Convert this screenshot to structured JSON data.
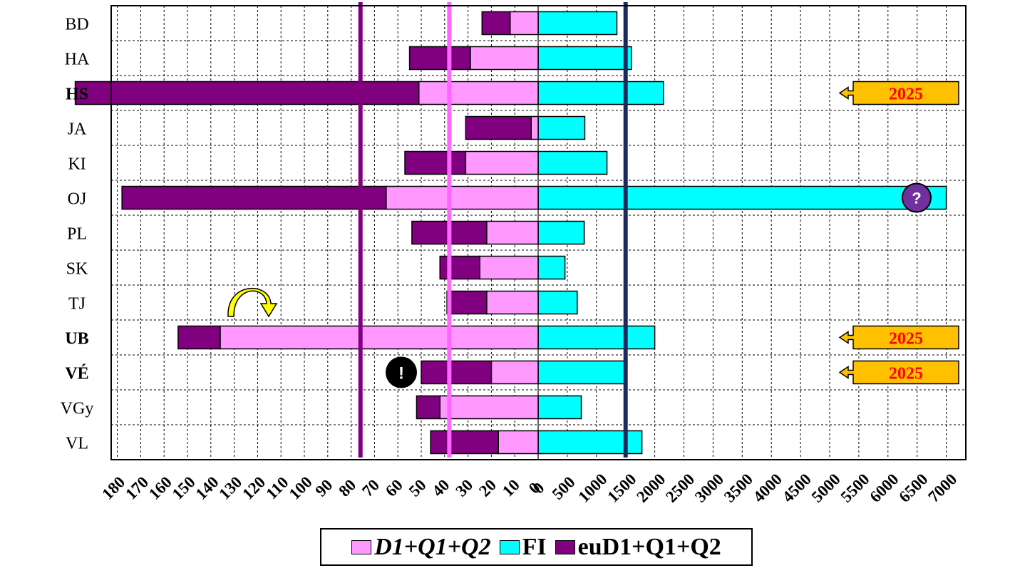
{
  "chart_data": {
    "type": "bar",
    "categories": [
      "BD",
      "HA",
      "HS",
      "JA",
      "KI",
      "OJ",
      "PL",
      "SK",
      "TJ",
      "UB",
      "VÉ",
      "VGy",
      "VL"
    ],
    "bold_categories": [
      "HS",
      "UB",
      "VÉ"
    ],
    "series": [
      {
        "name": "D1+Q1+Q2",
        "side": "left",
        "color": "#ff99ff",
        "values": [
          12,
          29,
          51,
          3,
          31,
          65,
          22,
          25,
          22,
          136,
          20,
          42,
          17
        ]
      },
      {
        "name": "FI",
        "side": "right",
        "color": "#00ffff",
        "values": [
          1350,
          1600,
          2150,
          800,
          1180,
          7000,
          790,
          460,
          670,
          2000,
          1480,
          740,
          1780
        ]
      },
      {
        "name": "euD1+Q1+Q2",
        "side": "left",
        "color": "#800080",
        "values": [
          12,
          26,
          147,
          28,
          26,
          113,
          32,
          17,
          17,
          18,
          30,
          10,
          29
        ]
      }
    ],
    "left_axis": {
      "ticks": [
        "180",
        "170",
        "160",
        "150",
        "140",
        "130",
        "120",
        "110",
        "100",
        "90",
        "80",
        "70",
        "60",
        "50",
        "40",
        "30",
        "20",
        "10",
        "0"
      ],
      "range": [
        0,
        180
      ]
    },
    "right_axis": {
      "ticks": [
        "0",
        "500",
        "1000",
        "1500",
        "2000",
        "2500",
        "3000",
        "3500",
        "4000",
        "4500",
        "5000",
        "5500",
        "6000",
        "6500",
        "7000"
      ],
      "range": [
        0,
        7000
      ]
    },
    "reference_lines": [
      {
        "axis": "left",
        "value": 76,
        "color": "#800080"
      },
      {
        "axis": "left",
        "value": 38,
        "color": "#ff66ff"
      },
      {
        "axis": "right",
        "value": 1500,
        "color": "#1a2a5e"
      }
    ],
    "callouts": [
      {
        "category": "HS",
        "text": "2025"
      },
      {
        "category": "UB",
        "text": "2025"
      },
      {
        "category": "VÉ",
        "text": "2025"
      }
    ],
    "markers": [
      {
        "category": "OJ",
        "text": "?",
        "fill": "#7030a0"
      },
      {
        "category": "VÉ",
        "text": "!",
        "fill": "#000000"
      },
      {
        "category": "TJ",
        "icon": "curved-arrow-icon",
        "fill": "#ffff00"
      }
    ],
    "grid": true,
    "legend": "bottom",
    "callout_colors": {
      "fill": "#ffc000",
      "text": "#ff0000"
    }
  },
  "legend": {
    "items": [
      {
        "label": "D1+Q1+Q2",
        "color": "#ff99ff"
      },
      {
        "label": "FI",
        "color": "#00ffff"
      },
      {
        "label": "euD1+Q1+Q2",
        "color": "#800080"
      }
    ]
  }
}
